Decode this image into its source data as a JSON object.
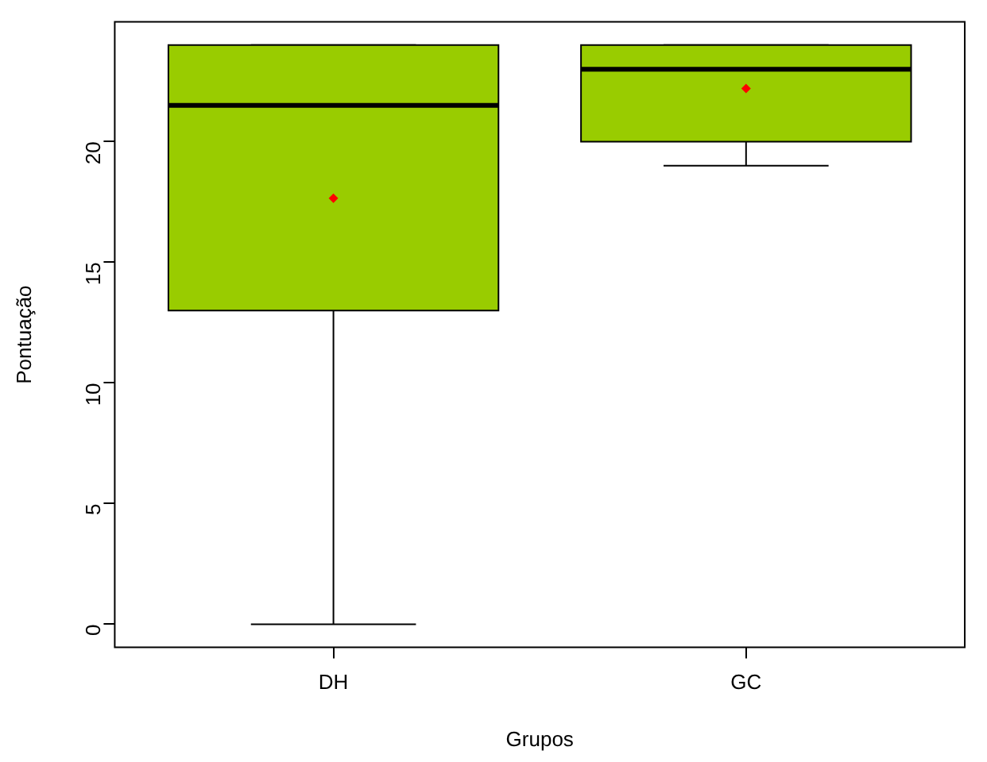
{
  "chart_data": {
    "type": "box",
    "categories": [
      "DH",
      "GC"
    ],
    "xlabel": "Grupos",
    "ylabel": "Pontuação",
    "color": "#99cc00",
    "grid": false,
    "ylim": [
      -0.96,
      24.96
    ],
    "yticks": [
      0,
      5,
      10,
      15,
      20
    ],
    "boxes": [
      {
        "low": 0,
        "q1": 13,
        "median": 21.5,
        "q3": 24,
        "high": 24,
        "mean": 17.65
      },
      {
        "low": 19,
        "q1": 20,
        "median": 23,
        "q3": 24,
        "high": 24,
        "mean": 22.2
      }
    ]
  }
}
